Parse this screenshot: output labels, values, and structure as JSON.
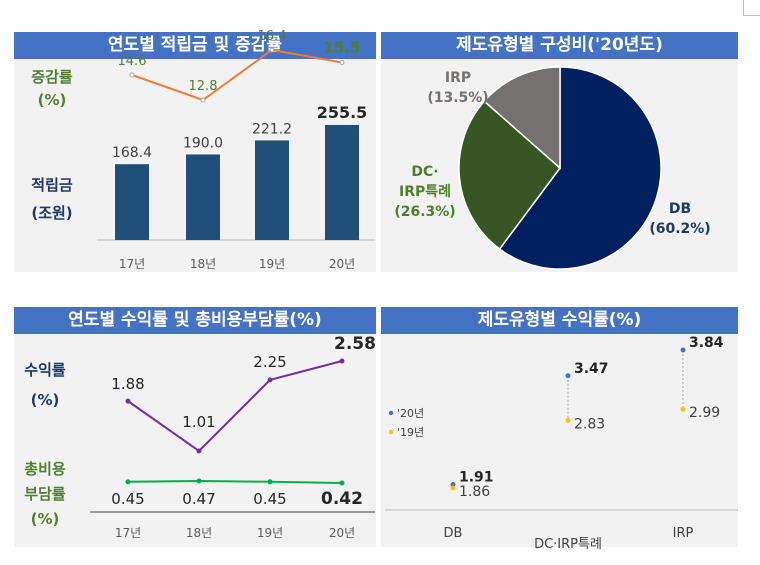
{
  "panels": {
    "p1": {
      "title": "연도별 적립금 및 증감률",
      "label_rate": [
        "증감률",
        "(%)"
      ],
      "label_amount": [
        "적립금",
        "(조원)"
      ]
    },
    "p2": {
      "title": "제도유형별 구성비('20년도)"
    },
    "p3": {
      "title": "연도별 수익률 및 총비용부담률(%)",
      "label_return": [
        "수익률",
        "(%)"
      ],
      "label_cost": [
        "총비용",
        "부담률",
        "(%)"
      ]
    },
    "p4": {
      "title": "제도유형별 수익률(%)"
    }
  },
  "colors": {
    "header": "#4472c4",
    "panel_bg": "#f2f2f2",
    "bar": "#1f4e79",
    "rate_line": "#ed7d31",
    "green_text": "#4f7f2b",
    "navy_text": "#1f3864",
    "return_line": "#7030a0",
    "cost_line": "#00b050",
    "pie_db": "#002060",
    "pie_dc": "#375623",
    "pie_irp": "#767171",
    "dot_2020": "#4472c4",
    "dot_2019": "#ffc000"
  },
  "chart_data": [
    {
      "type": "bar",
      "title": "연도별 적립금 및 증감률",
      "categories": [
        "17년",
        "18년",
        "19년",
        "20년"
      ],
      "series": [
        {
          "name": "적립금",
          "values": [
            168.4,
            190.0,
            221.2,
            255.5
          ],
          "labels": [
            "168.4",
            "190.0",
            "221.2",
            "255.5"
          ]
        },
        {
          "name": "증감률",
          "type": "line",
          "values": [
            14.6,
            12.8,
            16.4,
            15.5
          ],
          "labels": [
            "14.6",
            "12.8",
            "16.4",
            "15.5"
          ]
        }
      ],
      "ylim_bar": [
        0,
        270
      ],
      "ylim_line": [
        0,
        40
      ]
    },
    {
      "type": "pie",
      "title": "제도유형별 구성비('20년도)",
      "slices": [
        {
          "name": "DB",
          "value": 60.2,
          "label": [
            "DB",
            "(60.2%)"
          ]
        },
        {
          "name": "DC·IRP특례",
          "value": 26.3,
          "label": [
            "DC·",
            "IRP특례",
            "(26.3%)"
          ]
        },
        {
          "name": "IRP",
          "value": 13.5,
          "label": [
            "IRP",
            "(13.5%)"
          ]
        }
      ]
    },
    {
      "type": "line",
      "title": "연도별 수익률 및 총비용부담률(%)",
      "categories": [
        "17년",
        "18년",
        "19년",
        "20년"
      ],
      "series": [
        {
          "name": "수익률",
          "values": [
            1.88,
            1.01,
            2.25,
            2.58
          ],
          "labels": [
            "1.88",
            "1.01",
            "2.25",
            "2.58"
          ]
        },
        {
          "name": "총비용부담률",
          "values": [
            0.45,
            0.47,
            0.45,
            0.42
          ],
          "labels": [
            "0.45",
            "0.47",
            "0.45",
            "0.42"
          ]
        }
      ]
    },
    {
      "type": "scatter",
      "title": "제도유형별 수익률(%)",
      "categories": [
        "DB",
        "DC·IRP특례",
        "IRP"
      ],
      "series": [
        {
          "name": "'20년",
          "values": [
            1.91,
            3.47,
            3.84
          ],
          "labels": [
            "1.91",
            "3.47",
            "3.84"
          ]
        },
        {
          "name": "'19년",
          "values": [
            1.86,
            2.83,
            2.99
          ],
          "labels": [
            "1.86",
            "2.83",
            "2.99"
          ]
        }
      ],
      "legend": "left"
    }
  ]
}
